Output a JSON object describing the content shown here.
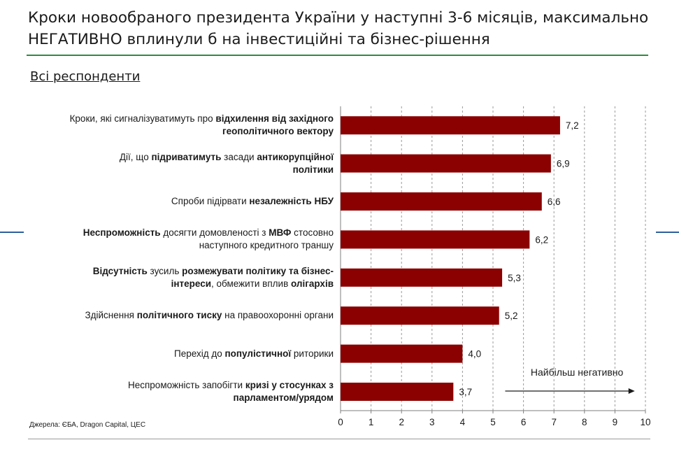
{
  "header": {
    "title_line1": "Кроки новообраного президента України у наступні 3-6 місяців, максимально",
    "title_line2": "НЕГАТИВНО вплинули б на інвестиційні та бізнес-рішення",
    "subtitle": "Всі респонденти"
  },
  "footer": {
    "source": "Джерела: ЄБА, Dragon Capital, ЦЕС"
  },
  "colors": {
    "bar": "#8b0000",
    "title_rule": "#2e8b3f",
    "side_accent": "#2b5f9e",
    "grid": "#9a9a9a"
  },
  "chart_data": {
    "type": "bar",
    "orientation": "horizontal",
    "xlim": [
      0,
      10
    ],
    "xticks": [
      "0",
      "1",
      "2",
      "3",
      "4",
      "5",
      "6",
      "7",
      "8",
      "9",
      "10"
    ],
    "grid": "vertical dashed",
    "annotation": "Найбільш негативно",
    "categories": [
      [
        {
          "t": "Кроки, які сигналізуватимуть про ",
          "b": false
        },
        {
          "t": "відхилення від західного",
          "b": true
        },
        {
          "br": true
        },
        {
          "t": "геополітичного вектору",
          "b": true
        }
      ],
      [
        {
          "t": "Дії, що ",
          "b": false
        },
        {
          "t": "підриватимуть",
          "b": true
        },
        {
          "t": " засади ",
          "b": false
        },
        {
          "t": "антикорупційної",
          "b": true
        },
        {
          "br": true
        },
        {
          "t": "політики",
          "b": true
        }
      ],
      [
        {
          "t": "Спроби підірвати ",
          "b": false
        },
        {
          "t": "незалежність НБУ",
          "b": true
        }
      ],
      [
        {
          "t": "Неспроможність",
          "b": true
        },
        {
          "t": " досягти домовленості з ",
          "b": false
        },
        {
          "t": "МВФ",
          "b": true
        },
        {
          "t": " стосовно",
          "b": false
        },
        {
          "br": true
        },
        {
          "t": "наступного кредитного траншу",
          "b": false
        }
      ],
      [
        {
          "t": "Відсутність",
          "b": true
        },
        {
          "t": " зусиль ",
          "b": false
        },
        {
          "t": "розмежувати політику та бізнес-",
          "b": true
        },
        {
          "br": true
        },
        {
          "t": "інтереси",
          "b": true
        },
        {
          "t": ", обмежити вплив ",
          "b": false
        },
        {
          "t": "олігархів",
          "b": true
        }
      ],
      [
        {
          "t": "Здійснення ",
          "b": false
        },
        {
          "t": "політичного тиску",
          "b": true
        },
        {
          "t": " на правоохоронні органи",
          "b": false
        }
      ],
      [
        {
          "t": "Перехід до ",
          "b": false
        },
        {
          "t": "популістичної",
          "b": true
        },
        {
          "t": " риторики",
          "b": false
        }
      ],
      [
        {
          "t": "Неспроможність запобігти ",
          "b": false
        },
        {
          "t": "кризі у стосунках з",
          "b": true
        },
        {
          "br": true
        },
        {
          "t": "парламентом/урядом",
          "b": true
        }
      ]
    ],
    "values": [
      7.2,
      6.9,
      6.6,
      6.2,
      5.3,
      5.2,
      4.0,
      3.7
    ],
    "value_labels": [
      "7,2",
      "6,9",
      "6,6",
      "6,2",
      "5,3",
      "5,2",
      "4,0",
      "3,7"
    ]
  }
}
